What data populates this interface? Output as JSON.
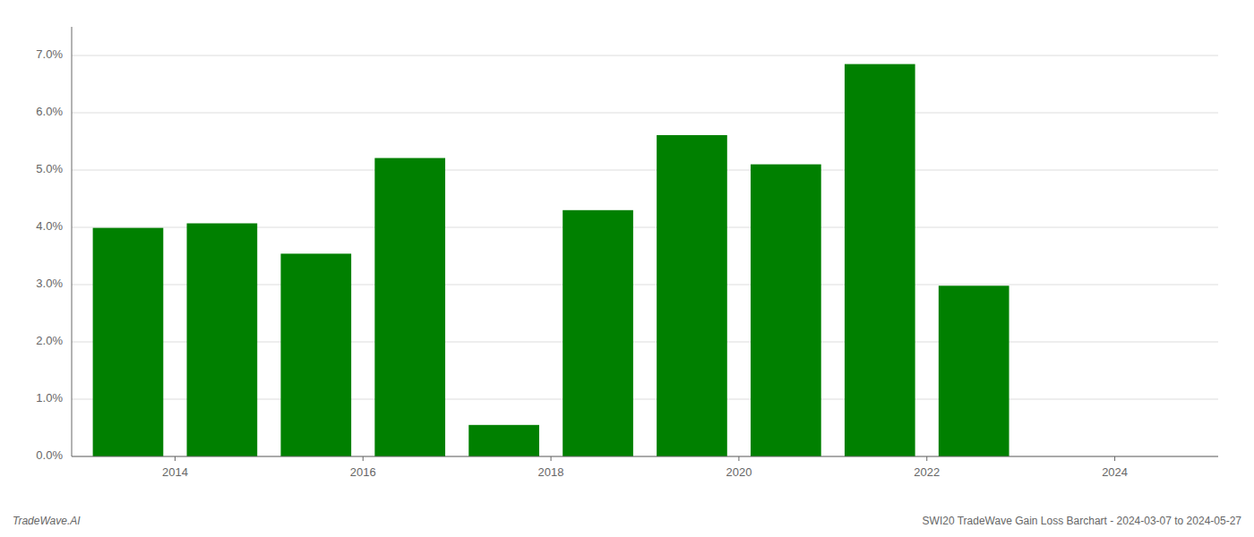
{
  "chart_data": {
    "type": "bar",
    "title": "SWI20 TradeWave Gain Loss Barchart - 2024-03-07 to 2024-05-27",
    "annotations": [
      "TradeWave.AI"
    ],
    "x": [
      2013,
      2014,
      2015,
      2016,
      2017,
      2018,
      2019,
      2020,
      2021,
      2022,
      2023
    ],
    "values": [
      0.0399,
      0.0407,
      0.0354,
      0.0521,
      0.0055,
      0.043,
      0.0561,
      0.051,
      0.0685,
      0.0298,
      0.0
    ],
    "color": "#008000",
    "xlim": [
      2012.4,
      2024.6
    ],
    "xticks": [
      {
        "value": 2013.5,
        "label": "2014"
      },
      {
        "value": 2015.5,
        "label": "2016"
      },
      {
        "value": 2017.5,
        "label": "2018"
      },
      {
        "value": 2019.5,
        "label": "2020"
      },
      {
        "value": 2021.5,
        "label": "2022"
      },
      {
        "value": 2023.5,
        "label": "2024"
      }
    ],
    "ylim": [
      0.0,
      0.075
    ],
    "yticks": [
      {
        "value": 0.0,
        "label": "0.0%"
      },
      {
        "value": 0.01,
        "label": "1.0%"
      },
      {
        "value": 0.02,
        "label": "2.0%"
      },
      {
        "value": 0.03,
        "label": "3.0%"
      },
      {
        "value": 0.04,
        "label": "4.0%"
      },
      {
        "value": 0.05,
        "label": "5.0%"
      },
      {
        "value": 0.06,
        "label": "6.0%"
      },
      {
        "value": 0.07,
        "label": "7.0%"
      }
    ],
    "grid": true
  }
}
